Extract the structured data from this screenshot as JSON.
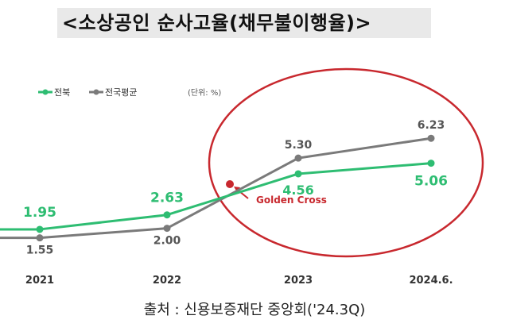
{
  "chart_data": {
    "type": "line",
    "title": "<소상공인  순사고율(채무불이행율)>",
    "unit_note": "(단위: %)",
    "categories": [
      "2021",
      "2022",
      "2023",
      "2024.6."
    ],
    "series": [
      {
        "name": "전북",
        "color": "#2ebd72",
        "values": [
          1.95,
          2.63,
          4.56,
          5.06
        ]
      },
      {
        "name": "전국평균",
        "color": "#7a7a7a",
        "values": [
          1.55,
          2.0,
          5.3,
          6.23
        ]
      }
    ],
    "annotation": {
      "text": "Golden Cross",
      "color": "#c8282e"
    },
    "legend_position": "top-left",
    "grid": false
  },
  "source": "출처 : 신용보증재단 중앙회('24.3Q)"
}
